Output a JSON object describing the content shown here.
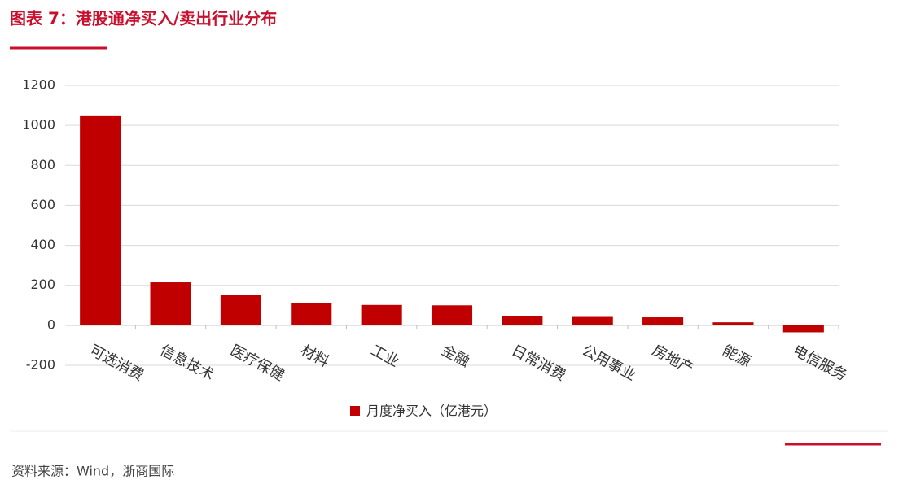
{
  "chart_data": {
    "type": "bar",
    "title": "图表 7：港股通净买入/卖出行业分布",
    "source": "资料来源：Wind，浙商国际",
    "categories": [
      "可选消费",
      "信息技术",
      "医疗保健",
      "材料",
      "工业",
      "金融",
      "日常消费",
      "公用事业",
      "房地产",
      "能源",
      "电信服务"
    ],
    "series": [
      {
        "name": "月度净买入（亿港元）",
        "color": "#c00000",
        "values": [
          1050,
          215,
          150,
          110,
          102,
          100,
          45,
          42,
          40,
          15,
          -35
        ]
      }
    ],
    "ylim": [
      -200,
      1200
    ],
    "yticks": [
      -200,
      0,
      200,
      400,
      600,
      800,
      1000,
      1200
    ],
    "grid": true
  }
}
